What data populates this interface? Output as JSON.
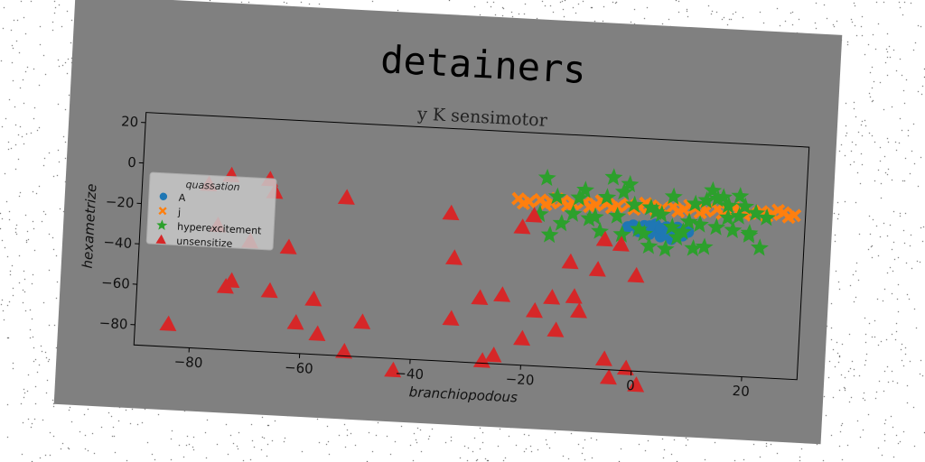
{
  "colors": {
    "canvas": "#ffffff",
    "figure_bg": "#808080",
    "axes_bg": "#808080",
    "A": "#1f77b4",
    "j": "#ff7f0e",
    "hyperexcitement": "#2ca02c",
    "unsensitize": "#d62728"
  },
  "chart_data": {
    "type": "scatter",
    "title": "detainers",
    "subtitle": "y K sensimotor",
    "xlabel": "branchiopodous",
    "ylabel": "hexametrize",
    "xlim": [
      -90,
      30
    ],
    "ylim": [
      -90,
      25
    ],
    "xticks": [
      -80,
      -60,
      -40,
      -20,
      0,
      20
    ],
    "yticks": [
      -80,
      -60,
      -40,
      -20,
      0,
      20
    ],
    "x_tick_labels": [
      "−80",
      "−60",
      "−40",
      "−20",
      "0",
      "20"
    ],
    "y_tick_labels": [
      "−80",
      "−60",
      "−40",
      "−20",
      "0",
      "20"
    ],
    "grid": false,
    "legend": {
      "title": "quassation",
      "placement": "center-left"
    },
    "series": [
      {
        "name": "A",
        "marker": "circle",
        "points": [
          [
            -1,
            -18
          ],
          [
            0,
            -19
          ],
          [
            1,
            -18
          ],
          [
            2,
            -20
          ],
          [
            3,
            -19
          ],
          [
            4,
            -21
          ],
          [
            5,
            -20
          ],
          [
            6,
            -19
          ],
          [
            7,
            -21
          ],
          [
            8,
            -20
          ],
          [
            0,
            -21
          ],
          [
            2,
            -22
          ],
          [
            4,
            -23
          ],
          [
            6,
            -22
          ],
          [
            8,
            -22
          ],
          [
            3,
            -17
          ],
          [
            5,
            -18
          ],
          [
            7,
            -18
          ],
          [
            1,
            -20
          ],
          [
            9,
            -20
          ],
          [
            4,
            -19
          ],
          [
            6,
            -24
          ],
          [
            2,
            -18
          ],
          [
            -2,
            -19
          ],
          [
            5,
            -22
          ]
        ]
      },
      {
        "name": "j",
        "marker": "x",
        "points": [
          [
            -22,
            -8
          ],
          [
            -20,
            -9
          ],
          [
            -18,
            -8
          ],
          [
            -16,
            -9
          ],
          [
            -14,
            -8
          ],
          [
            -12,
            -9
          ],
          [
            -10,
            -8
          ],
          [
            -8,
            -9
          ],
          [
            -6,
            -8
          ],
          [
            -4,
            -9
          ],
          [
            -2,
            -8
          ],
          [
            0,
            -9
          ],
          [
            2,
            -8
          ],
          [
            4,
            -9
          ],
          [
            6,
            -8
          ],
          [
            8,
            -9
          ],
          [
            10,
            -8
          ],
          [
            12,
            -9
          ],
          [
            14,
            -8
          ],
          [
            16,
            -9
          ],
          [
            18,
            -8
          ],
          [
            20,
            -9
          ],
          [
            22,
            -8
          ],
          [
            24,
            -9
          ],
          [
            26,
            -8
          ],
          [
            28,
            -9
          ],
          [
            -21,
            -10
          ],
          [
            -17,
            -10
          ],
          [
            -13,
            -10
          ],
          [
            -9,
            -10
          ],
          [
            -5,
            -10
          ],
          [
            -1,
            -10
          ],
          [
            3,
            -10
          ],
          [
            7,
            -10
          ],
          [
            11,
            -10
          ],
          [
            15,
            -10
          ],
          [
            19,
            -10
          ],
          [
            23,
            -10
          ],
          [
            27,
            -10
          ],
          [
            -15,
            -7
          ],
          [
            -7,
            -7
          ],
          [
            1,
            -7
          ],
          [
            9,
            -7
          ],
          [
            17,
            -7
          ],
          [
            25,
            -7
          ]
        ]
      },
      {
        "name": "hyperexcitement",
        "marker": "star",
        "points": [
          [
            -17,
            3
          ],
          [
            -15,
            -6
          ],
          [
            -12,
            -14
          ],
          [
            -10,
            -2
          ],
          [
            -8,
            -15
          ],
          [
            -6,
            -5
          ],
          [
            -5,
            5
          ],
          [
            -4,
            -14
          ],
          [
            -3,
            -2
          ],
          [
            -2,
            2
          ],
          [
            -1,
            -8
          ],
          [
            0,
            -20
          ],
          [
            1,
            -22
          ],
          [
            2,
            -28
          ],
          [
            3,
            -11
          ],
          [
            4,
            -12
          ],
          [
            5,
            -29
          ],
          [
            6,
            -3
          ],
          [
            7,
            -23
          ],
          [
            8,
            -20
          ],
          [
            9,
            -15
          ],
          [
            10,
            -28
          ],
          [
            11,
            -16
          ],
          [
            12,
            -4
          ],
          [
            13,
            1
          ],
          [
            14,
            -17
          ],
          [
            15,
            -2
          ],
          [
            16,
            -12
          ],
          [
            17,
            -18
          ],
          [
            18,
            -1
          ],
          [
            19,
            -6
          ],
          [
            20,
            -20
          ],
          [
            21,
            -9
          ],
          [
            22,
            -26
          ],
          [
            23,
            -11
          ],
          [
            -16,
            -25
          ],
          [
            -14,
            -19
          ],
          [
            -11,
            -6
          ],
          [
            -9,
            -16
          ],
          [
            -7,
            -22
          ],
          [
            2,
            -9
          ],
          [
            6,
            -18
          ],
          [
            10,
            -6
          ],
          [
            14,
            -3
          ],
          [
            16,
            -6
          ],
          [
            18,
            -11
          ],
          [
            20,
            -19
          ],
          [
            -18,
            -15
          ],
          [
            -3,
            -23
          ],
          [
            12,
            -27
          ]
        ]
      },
      {
        "name": "unsensitize",
        "marker": "triangle",
        "points": [
          [
            -84,
            -79
          ],
          [
            -76,
            -29
          ],
          [
            -74,
            -59
          ],
          [
            -73,
            -56
          ],
          [
            -70,
            -36
          ],
          [
            -66,
            -60
          ],
          [
            -63,
            -38
          ],
          [
            -61,
            -75
          ],
          [
            -58,
            -63
          ],
          [
            -57,
            -80
          ],
          [
            -52,
            -88
          ],
          [
            -49,
            -73
          ],
          [
            -43,
            -96
          ],
          [
            -34,
            -17
          ],
          [
            -33,
            -39
          ],
          [
            -33,
            -69
          ],
          [
            -28,
            -58
          ],
          [
            -27,
            -89
          ],
          [
            -25,
            -86
          ],
          [
            -24,
            -56
          ],
          [
            -21,
            -22
          ],
          [
            -20,
            -77
          ],
          [
            -19,
            -16
          ],
          [
            -18,
            -63
          ],
          [
            -15,
            -56
          ],
          [
            -14,
            -72
          ],
          [
            -12,
            -38
          ],
          [
            -11,
            -55
          ],
          [
            -10,
            -62
          ],
          [
            -7,
            -41
          ],
          [
            -6,
            -26
          ],
          [
            -5,
            -85
          ],
          [
            -4,
            -94
          ],
          [
            -3,
            -28
          ],
          [
            -1,
            -89
          ],
          [
            0,
            -43
          ],
          [
            1,
            -97
          ],
          [
            -74,
            -4
          ],
          [
            -78,
            -9
          ],
          [
            -67,
            -5
          ],
          [
            -66,
            -11
          ],
          [
            -53,
            -12
          ]
        ]
      }
    ]
  }
}
